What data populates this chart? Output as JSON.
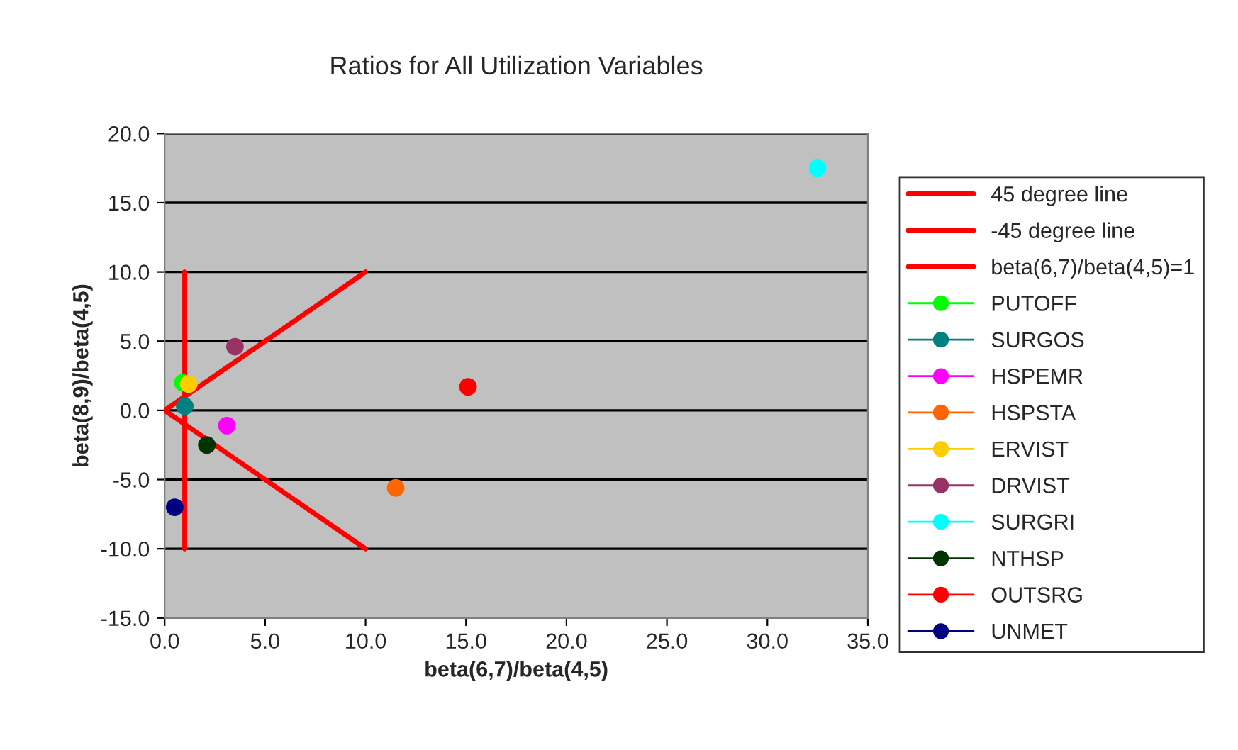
{
  "chart_data": {
    "type": "scatter",
    "title": "Ratios for All Utilization Variables",
    "xlabel": "beta(6,7)/beta(4,5)",
    "ylabel": "beta(8,9)/beta(4,5)",
    "xlim": [
      0,
      35
    ],
    "xticks": [
      {
        "value": 0,
        "label": "0.0"
      },
      {
        "value": 5,
        "label": "5.0"
      },
      {
        "value": 10,
        "label": "10.0"
      },
      {
        "value": 15,
        "label": "15.0"
      },
      {
        "value": 20,
        "label": "20.0"
      },
      {
        "value": 25,
        "label": "25.0"
      },
      {
        "value": 30,
        "label": "30.0"
      },
      {
        "value": 35,
        "label": "35.0"
      }
    ],
    "ylim": [
      -15,
      20
    ],
    "yticks": [
      {
        "value": -15,
        "label": "-15.0"
      },
      {
        "value": -10,
        "label": "-10.0"
      },
      {
        "value": -5,
        "label": "-5.0"
      },
      {
        "value": 0,
        "label": "0.0"
      },
      {
        "value": 5,
        "label": "5.0"
      },
      {
        "value": 10,
        "label": "10.0"
      },
      {
        "value": 15,
        "label": "15.0"
      },
      {
        "value": 20,
        "label": "20.0"
      }
    ],
    "grid": "y",
    "legend": "right",
    "marker": "circle",
    "series": [
      {
        "name": "45 degree line",
        "type": "line",
        "color": "#ff0000",
        "marker": "none",
        "x": [
          0,
          10
        ],
        "values": [
          0,
          10
        ]
      },
      {
        "name": "-45 degree line",
        "type": "line",
        "color": "#ff0000",
        "marker": "none",
        "x": [
          0,
          10
        ],
        "values": [
          0,
          -10
        ]
      },
      {
        "name": "beta(6,7)/beta(4,5)=1",
        "type": "line",
        "color": "#ff0000",
        "marker": "none",
        "x": [
          1,
          1
        ],
        "values": [
          -10,
          10
        ]
      },
      {
        "name": "PUTOFF",
        "color": "#00ff00",
        "x": [
          0.9
        ],
        "values": [
          2.0
        ]
      },
      {
        "name": "SURGOS",
        "color": "#008080",
        "x": [
          1.0
        ],
        "values": [
          0.3
        ]
      },
      {
        "name": "HSPEMR",
        "color": "#ff00ff",
        "x": [
          3.1
        ],
        "values": [
          -1.1
        ]
      },
      {
        "name": "HSPSTA",
        "color": "#ff6600",
        "x": [
          11.5
        ],
        "values": [
          -5.6
        ]
      },
      {
        "name": "ERVIST",
        "color": "#ffcc00",
        "x": [
          1.2
        ],
        "values": [
          1.9
        ]
      },
      {
        "name": "DRVIST",
        "color": "#993366",
        "x": [
          3.5
        ],
        "values": [
          4.6
        ]
      },
      {
        "name": "SURGRI",
        "color": "#00ffff",
        "x": [
          32.5
        ],
        "values": [
          17.5
        ]
      },
      {
        "name": "NTHSP",
        "color": "#003300",
        "x": [
          2.1
        ],
        "values": [
          -2.5
        ]
      },
      {
        "name": "OUTSRG",
        "color": "#ff0000",
        "x": [
          15.1
        ],
        "values": [
          1.7
        ]
      },
      {
        "name": "UNMET",
        "color": "#000080",
        "x": [
          0.5
        ],
        "values": [
          -7.0
        ]
      }
    ]
  }
}
